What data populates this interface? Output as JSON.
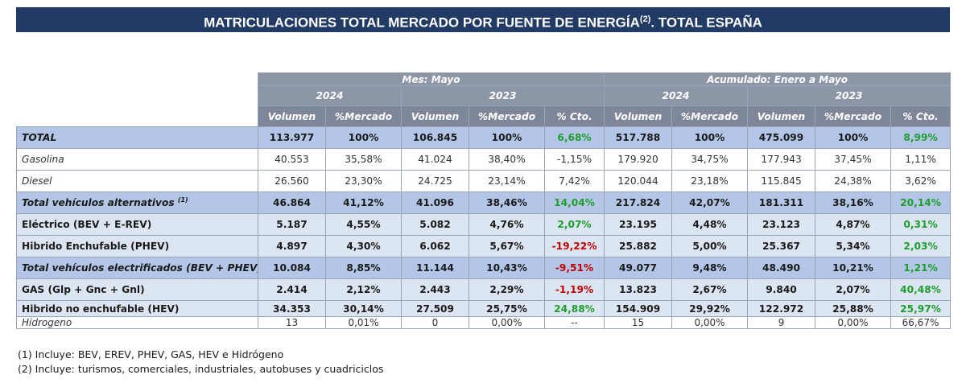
{
  "title": {
    "main": "MATRICULACIONES TOTAL MERCADO POR FUENTE DE ENERGÍA",
    "sup": "(2)",
    "suffix": ". TOTAL ESPAÑA"
  },
  "headers": {
    "group_month": "Mes: Mayo",
    "group_cumulative": "Acumulado: Enero a Mayo",
    "year_a": "2024",
    "year_b": "2023",
    "col_volumen": "Volumen",
    "col_mercado": "%Mercado",
    "col_cto": "% Cto."
  },
  "rows": [
    {
      "label": "TOTAL",
      "sup": "",
      "m24v": "113.977",
      "m24p": "100%",
      "m23v": "106.845",
      "m23p": "100%",
      "mcto": "6,68%",
      "a24v": "517.788",
      "a24p": "100%",
      "a23v": "475.099",
      "a23p": "100%",
      "acto": "8,99%"
    },
    {
      "label": "Gasolina",
      "sup": "",
      "m24v": "40.553",
      "m24p": "35,58%",
      "m23v": "41.024",
      "m23p": "38,40%",
      "mcto": "-1,15%",
      "a24v": "179.920",
      "a24p": "34,75%",
      "a23v": "177.943",
      "a23p": "37,45%",
      "acto": "1,11%"
    },
    {
      "label": "Diesel",
      "sup": "",
      "m24v": "26.560",
      "m24p": "23,30%",
      "m23v": "24.725",
      "m23p": "23,14%",
      "mcto": "7,42%",
      "a24v": "120.044",
      "a24p": "23,18%",
      "a23v": "115.845",
      "a23p": "24,38%",
      "acto": "3,62%"
    },
    {
      "label": "Total vehículos alternativos",
      "sup": "(1)",
      "m24v": "46.864",
      "m24p": "41,12%",
      "m23v": "41.096",
      "m23p": "38,46%",
      "mcto": "14,04%",
      "a24v": "217.824",
      "a24p": "42,07%",
      "a23v": "181.311",
      "a23p": "38,16%",
      "acto": "20,14%"
    },
    {
      "label": "Eléctrico (BEV + E-REV)",
      "sup": "",
      "m24v": "5.187",
      "m24p": "4,55%",
      "m23v": "5.082",
      "m23p": "4,76%",
      "mcto": "2,07%",
      "a24v": "23.195",
      "a24p": "4,48%",
      "a23v": "23.123",
      "a23p": "4,87%",
      "acto": "0,31%"
    },
    {
      "label": "Hibrido Enchufable (PHEV)",
      "sup": "",
      "m24v": "4.897",
      "m24p": "4,30%",
      "m23v": "6.062",
      "m23p": "5,67%",
      "mcto": "-19,22%",
      "a24v": "25.882",
      "a24p": "5,00%",
      "a23v": "25.367",
      "a23p": "5,34%",
      "acto": "2,03%"
    },
    {
      "label": "Total vehículos electrificados (BEV + PHEV)",
      "sup": "",
      "m24v": "10.084",
      "m24p": "8,85%",
      "m23v": "11.144",
      "m23p": "10,43%",
      "mcto": "-9,51%",
      "a24v": "49.077",
      "a24p": "9,48%",
      "a23v": "48.490",
      "a23p": "10,21%",
      "acto": "1,21%"
    },
    {
      "label": "GAS (Glp + Gnc + Gnl)",
      "sup": "",
      "m24v": "2.414",
      "m24p": "2,12%",
      "m23v": "2.443",
      "m23p": "2,29%",
      "mcto": "-1,19%",
      "a24v": "13.823",
      "a24p": "2,67%",
      "a23v": "9.840",
      "a23p": "2,07%",
      "acto": "40,48%"
    },
    {
      "label": "Hibrido no enchufable (HEV)",
      "sup": "",
      "m24v": "34.353",
      "m24p": "30,14%",
      "m23v": "27.509",
      "m23p": "25,75%",
      "mcto": "24,88%",
      "a24v": "154.909",
      "a24p": "29,92%",
      "a23v": "122.972",
      "a23p": "25,88%",
      "acto": "25,97%"
    },
    {
      "label": "Hidrogeno",
      "sup": "",
      "m24v": "13",
      "m24p": "0,01%",
      "m23v": "0",
      "m23p": "0,00%",
      "mcto": "--",
      "a24v": "15",
      "a24p": "0,00%",
      "a23v": "9",
      "a23p": "0,00%",
      "acto": "66,67%"
    }
  ],
  "notes": [
    "(1) Incluye: BEV, EREV, PHEV, GAS, HEV e Hidrógeno",
    "(2) Incluye: turismos, comerciales, industriales, autobuses y cuadriciclos"
  ],
  "colors": {
    "title_bg": "#213b64",
    "header_bg": "#8d96a6",
    "total_row_bg": "#b3c6e7",
    "sub_row_bg": "#dce6f2",
    "positive": "#1f9e2e",
    "negative": "#c00000"
  }
}
